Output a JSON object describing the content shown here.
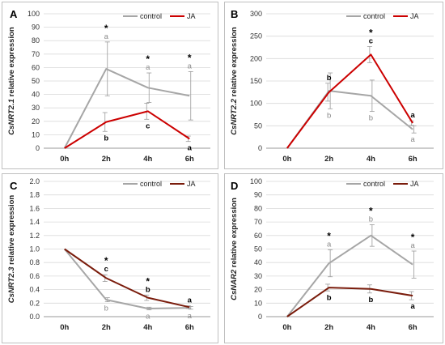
{
  "chart_data": [
    {
      "panel": "A",
      "type": "line",
      "ylabel_italic": "CsNRT2.1",
      "ylabel_rest": " relative expression",
      "categories": [
        "0h",
        "2h",
        "4h",
        "6h"
      ],
      "ylim": [
        0,
        100
      ],
      "yticks": [
        0,
        10,
        20,
        30,
        40,
        50,
        60,
        70,
        80,
        90,
        100
      ],
      "legend_position": "top-right",
      "series": [
        {
          "name": "control",
          "color": "#a6a6a6",
          "values": [
            0,
            59,
            45,
            39
          ],
          "errors": [
            0,
            20,
            11,
            18
          ],
          "labels": [
            "",
            "a",
            "a",
            "a"
          ],
          "label_pos": "above"
        },
        {
          "name": "JA",
          "color": "#cc0000",
          "values": [
            0,
            19.5,
            27.5,
            7
          ],
          "errors": [
            0,
            7,
            6,
            2
          ],
          "labels": [
            "",
            "b",
            "c",
            "a"
          ],
          "label_pos": "below"
        }
      ],
      "asterisks": [
        "",
        "*",
        "*",
        "*"
      ]
    },
    {
      "panel": "B",
      "type": "line",
      "ylabel_italic": "CsNRT2.2",
      "ylabel_rest": " relative expression",
      "categories": [
        "0h",
        "2h",
        "4h",
        "6h"
      ],
      "ylim": [
        0,
        300
      ],
      "yticks": [
        0,
        50,
        100,
        150,
        200,
        250,
        300
      ],
      "legend_position": "top-right",
      "series": [
        {
          "name": "control",
          "color": "#a6a6a6",
          "values": [
            0,
            128,
            117,
            42
          ],
          "errors": [
            0,
            40,
            35,
            8
          ],
          "labels": [
            "",
            "b",
            "b",
            "a"
          ],
          "label_pos": "below"
        },
        {
          "name": "JA",
          "color": "#cc0000",
          "values": [
            0,
            125,
            209,
            56
          ],
          "errors": [
            0,
            20,
            18,
            5
          ],
          "labels": [
            "",
            "b",
            "c",
            "a"
          ],
          "label_pos": "above"
        }
      ],
      "asterisks": [
        "",
        "",
        "*",
        ""
      ]
    },
    {
      "panel": "C",
      "type": "line",
      "ylabel_italic": "CsNRT2.3",
      "ylabel_rest": " relative expression",
      "categories": [
        "0h",
        "2h",
        "4h",
        "6h"
      ],
      "ylim": [
        0,
        2.0
      ],
      "yticks": [
        "0.0",
        "0.2",
        "0.4",
        "0.6",
        "0.8",
        "1.0",
        "1.2",
        "1.4",
        "1.6",
        "1.8",
        "2.0"
      ],
      "legend_position": "top-right",
      "series": [
        {
          "name": "control",
          "color": "#a6a6a6",
          "values": [
            1.0,
            0.25,
            0.12,
            0.13
          ],
          "errors": [
            0,
            0.03,
            0.02,
            0.02
          ],
          "labels": [
            "",
            "b",
            "a",
            "a"
          ],
          "label_pos": "below"
        },
        {
          "name": "JA",
          "color": "#7a1c0c",
          "values": [
            1.0,
            0.57,
            0.28,
            0.14
          ],
          "errors": [
            0,
            0.05,
            0.04,
            0.02
          ],
          "labels": [
            "",
            "c",
            "b",
            "a"
          ],
          "label_pos": "above"
        }
      ],
      "asterisks": [
        "",
        "*",
        "*",
        ""
      ]
    },
    {
      "panel": "D",
      "type": "line",
      "ylabel_italic": "CsNAR2",
      "ylabel_rest": " relative expression",
      "categories": [
        "0h",
        "2h",
        "4h",
        "6h"
      ],
      "ylim": [
        0,
        100
      ],
      "yticks": [
        0,
        10,
        20,
        30,
        40,
        50,
        60,
        70,
        80,
        90,
        100
      ],
      "legend_position": "top-right",
      "series": [
        {
          "name": "control",
          "color": "#a6a6a6",
          "values": [
            0,
            39.5,
            60,
            38.5
          ],
          "errors": [
            0,
            10,
            8,
            10
          ],
          "labels": [
            "",
            "a",
            "b",
            "a"
          ],
          "label_pos": "above"
        },
        {
          "name": "JA",
          "color": "#7a1c0c",
          "values": [
            0,
            21.5,
            20.5,
            15.5
          ],
          "errors": [
            0,
            2.5,
            3,
            3
          ],
          "labels": [
            "",
            "b",
            "b",
            "a"
          ],
          "label_pos": "below"
        }
      ],
      "asterisks": [
        "",
        "*",
        "*",
        "*"
      ]
    }
  ]
}
